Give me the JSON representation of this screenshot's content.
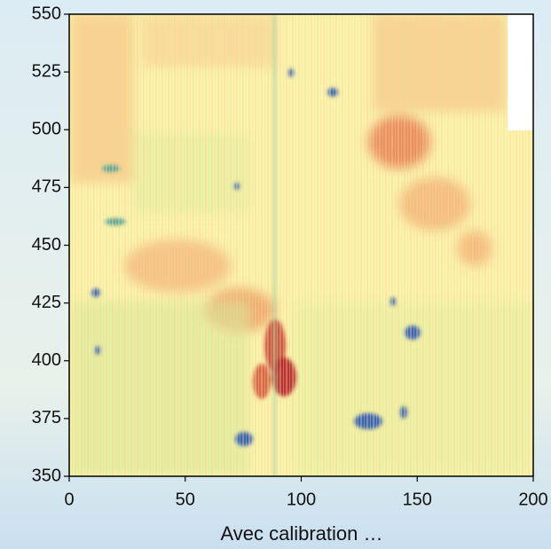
{
  "chart_data": {
    "type": "heatmap",
    "xlabel": "Avec calibration …",
    "xlim": [
      0,
      200
    ],
    "xticks": [
      0,
      50,
      100,
      150,
      200
    ],
    "ylim": [
      350,
      550
    ],
    "yticks": [
      350,
      375,
      400,
      425,
      450,
      475,
      500,
      525,
      550
    ]
  }
}
